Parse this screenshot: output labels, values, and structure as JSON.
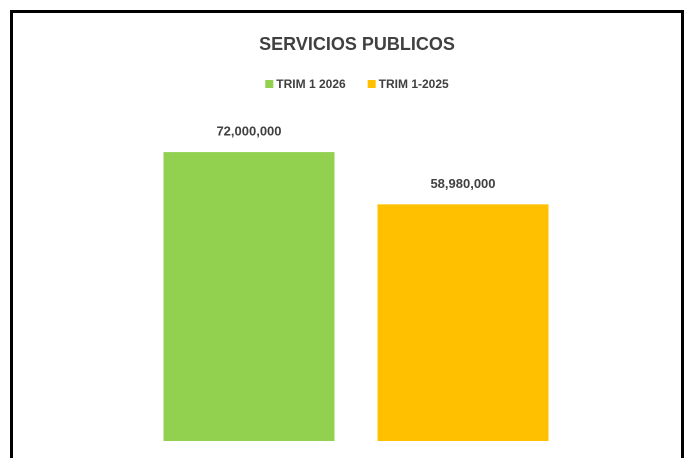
{
  "chart_data": {
    "type": "bar",
    "title": "SERVICIOS PUBLICOS",
    "categories": [
      null
    ],
    "series": [
      {
        "name": "TRIM 1 2026",
        "color": "#92d050",
        "values": [
          72000000
        ],
        "value_labels": [
          "72,000,000"
        ]
      },
      {
        "name": "TRIM 1-2025",
        "color": "#ffc000",
        "values": [
          58980000
        ],
        "value_labels": [
          "58,980,000"
        ]
      }
    ],
    "ylim": [
      0,
      80000000
    ],
    "legend": "top",
    "grid": false
  }
}
